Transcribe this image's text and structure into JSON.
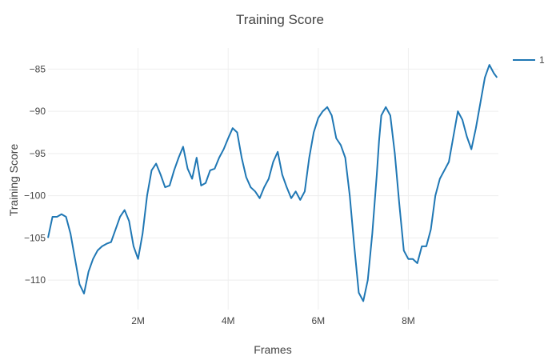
{
  "chart_data": {
    "type": "line",
    "title": "Training Score",
    "xlabel": "Frames",
    "ylabel": "Training Score",
    "xlim": [
      0,
      10000000
    ],
    "ylim": [
      -113.5,
      -82.5
    ],
    "x_ticks": [
      2000000,
      4000000,
      6000000,
      8000000
    ],
    "x_tick_labels": [
      "2M",
      "4M",
      "6M",
      "8M"
    ],
    "y_ticks": [
      -110,
      -105,
      -100,
      -95,
      -90,
      -85
    ],
    "y_tick_labels": [
      "−110",
      "−105",
      "−100",
      "−95",
      "−90",
      "−85"
    ],
    "grid": true,
    "legend_position": "top-right",
    "series": [
      {
        "name": "1",
        "color": "#1f77b4",
        "x": [
          0,
          100000,
          200000,
          300000,
          400000,
          500000,
          600000,
          700000,
          800000,
          900000,
          1000000,
          1100000,
          1200000,
          1300000,
          1400000,
          1500000,
          1600000,
          1700000,
          1800000,
          1900000,
          2000000,
          2100000,
          2200000,
          2300000,
          2400000,
          2500000,
          2600000,
          2700000,
          2800000,
          2900000,
          3000000,
          3100000,
          3200000,
          3300000,
          3400000,
          3500000,
          3600000,
          3700000,
          3800000,
          3900000,
          4000000,
          4100000,
          4200000,
          4300000,
          4400000,
          4500000,
          4600000,
          4700000,
          4800000,
          4900000,
          5000000,
          5100000,
          5200000,
          5300000,
          5400000,
          5500000,
          5600000,
          5700000,
          5800000,
          5900000,
          6000000,
          6100000,
          6200000,
          6300000,
          6400000,
          6500000,
          6600000,
          6700000,
          6800000,
          6900000,
          7000000,
          7100000,
          7200000,
          7300000,
          7350000,
          7400000,
          7500000,
          7600000,
          7700000,
          7800000,
          7900000,
          8000000,
          8100000,
          8200000,
          8250000,
          8300000,
          8400000,
          8500000,
          8600000,
          8700000,
          8800000,
          8900000,
          9000000,
          9100000,
          9200000,
          9300000,
          9400000,
          9500000,
          9600000,
          9700000,
          9800000,
          9900000,
          9970000
        ],
        "values": [
          -105,
          -102.5,
          -102.5,
          -102.2,
          -102.5,
          -104.5,
          -107.5,
          -110.5,
          -111.6,
          -109,
          -107.5,
          -106.5,
          -106,
          -105.7,
          -105.5,
          -104,
          -102.5,
          -101.7,
          -103,
          -106,
          -107.5,
          -104.5,
          -100,
          -97,
          -96.2,
          -97.5,
          -99,
          -98.8,
          -97,
          -95.5,
          -94.2,
          -96.8,
          -98,
          -95.5,
          -98.8,
          -98.5,
          -97,
          -96.8,
          -95.5,
          -94.5,
          -93.2,
          -92,
          -92.5,
          -95.5,
          -97.8,
          -99,
          -99.5,
          -100.3,
          -99,
          -98,
          -96,
          -94.8,
          -97.5,
          -99,
          -100.3,
          -99.5,
          -100.5,
          -99.5,
          -95.5,
          -92.5,
          -90.8,
          -90,
          -89.5,
          -90.5,
          -93.2,
          -94,
          -95.5,
          -100,
          -106,
          -111.5,
          -112.5,
          -110,
          -104.5,
          -97.5,
          -93.5,
          -90.5,
          -89.5,
          -90.5,
          -95,
          -101,
          -106.5,
          -107.5,
          -107.5,
          -108,
          -107,
          -106,
          -106,
          -104,
          -100,
          -98,
          -97,
          -96,
          -93,
          -90,
          -91,
          -93,
          -94.5,
          -92,
          -89,
          -86,
          -84.5,
          -85.5,
          -86
        ],
        "x_dense_note": ""
      }
    ]
  }
}
